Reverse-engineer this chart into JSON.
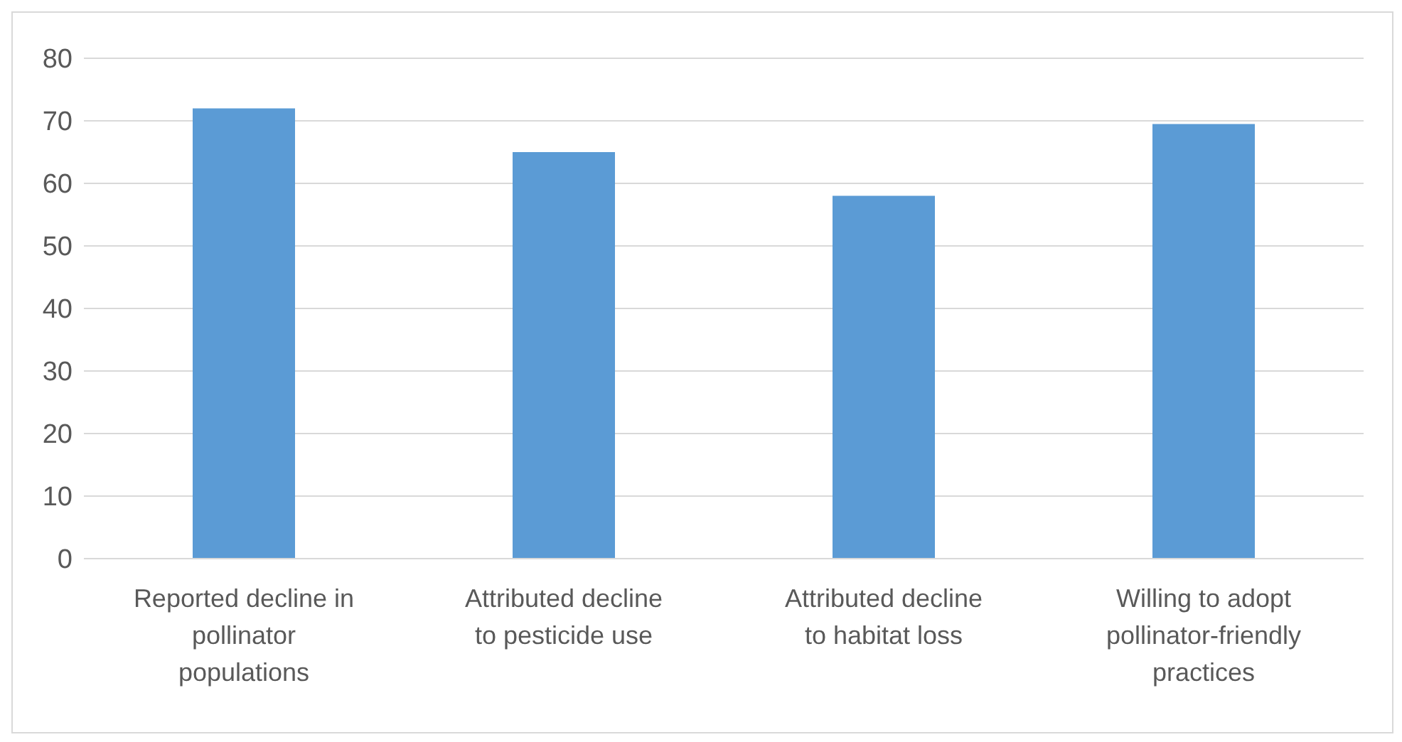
{
  "chart_data": {
    "type": "bar",
    "categories": [
      "Reported decline in pollinator populations",
      "Attributed decline to pesticide use",
      "Attributed decline to habitat loss",
      "Willing to adopt pollinator-friendly practices"
    ],
    "values": [
      72,
      65,
      58,
      69.5
    ],
    "color": "#5b9bd5",
    "ylim": [
      0,
      80
    ],
    "yticks": [
      0,
      10,
      20,
      30,
      40,
      50,
      60,
      70,
      80
    ],
    "grid": "y"
  }
}
